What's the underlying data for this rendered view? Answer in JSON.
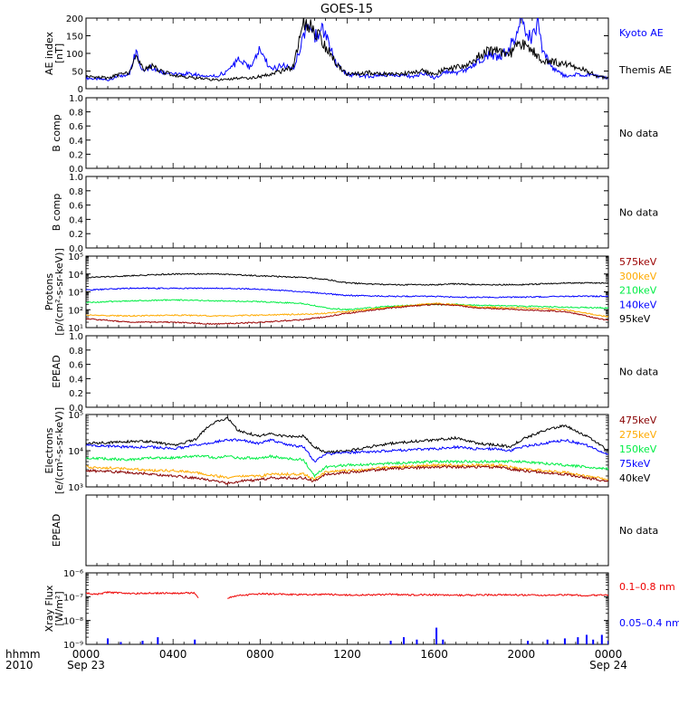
{
  "title": "GOES-15",
  "colors": {
    "black": "#000000",
    "blue": "#0000ff",
    "red": "#e00000",
    "orange": "#ffaa00",
    "green": "#00ee44",
    "darkred": "#880000",
    "p575": "#9b0000",
    "xray_long": "#ee0000",
    "xray_short": "#0000ff"
  },
  "time_axis": {
    "label_line1": "hhmm",
    "label_line2": "2010",
    "ticks": [
      {
        "hour": 0,
        "label": "0000",
        "sublabel": "Sep 23"
      },
      {
        "hour": 4,
        "label": "0400",
        "sublabel": ""
      },
      {
        "hour": 8,
        "label": "0800",
        "sublabel": ""
      },
      {
        "hour": 12,
        "label": "1200",
        "sublabel": ""
      },
      {
        "hour": 16,
        "label": "1600",
        "sublabel": ""
      },
      {
        "hour": 20,
        "label": "2000",
        "sublabel": ""
      },
      {
        "hour": 24,
        "label": "0000",
        "sublabel": "Sep 24"
      }
    ],
    "range_hours": [
      0,
      24
    ]
  },
  "panels": [
    {
      "id": "ae",
      "ylabel": [
        "AE index",
        "[nT]"
      ],
      "scale": "linear",
      "ylim": [
        0,
        200
      ],
      "yticks": [
        0,
        50,
        100,
        150,
        200
      ],
      "ytick_labels": [
        "0",
        "50",
        "100",
        "150",
        "200"
      ],
      "legend": [
        {
          "text": "Kyoto AE",
          "color": "blue"
        },
        {
          "text": "Themis AE",
          "color": "black"
        }
      ],
      "no_data": ""
    },
    {
      "id": "bcomp1",
      "ylabel": [
        "B comp"
      ],
      "scale": "linear",
      "ylim": [
        0,
        1
      ],
      "yticks": [
        0,
        0.2,
        0.4,
        0.6,
        0.8,
        1.0
      ],
      "ytick_labels": [
        "0.0",
        "0.2",
        "0.4",
        "0.6",
        "0.8",
        "1.0"
      ],
      "legend": [],
      "no_data": "No data"
    },
    {
      "id": "bcomp2",
      "ylabel": [
        "B comp"
      ],
      "scale": "linear",
      "ylim": [
        0,
        1
      ],
      "yticks": [
        0,
        0.2,
        0.4,
        0.6,
        0.8,
        1.0
      ],
      "ytick_labels": [
        "0.0",
        "0.2",
        "0.4",
        "0.6",
        "0.8",
        "1.0"
      ],
      "legend": [],
      "no_data": "No data"
    },
    {
      "id": "protons",
      "ylabel": [
        "Protons",
        "[p/(cm²-s-sr-keV)]"
      ],
      "scale": "log",
      "ylim": [
        1,
        5
      ],
      "yticks": [
        1,
        2,
        3,
        4,
        5
      ],
      "ytick_labels": [
        "10¹",
        "10²",
        "10³",
        "10⁴",
        "10⁵"
      ],
      "legend": [
        {
          "text": "575keV",
          "color": "p575"
        },
        {
          "text": "300keV",
          "color": "orange"
        },
        {
          "text": "210keV",
          "color": "green"
        },
        {
          "text": "140keV",
          "color": "blue"
        },
        {
          "text": "95keV",
          "color": "black"
        }
      ],
      "no_data": ""
    },
    {
      "id": "epead1",
      "ylabel": [
        "EPEAD"
      ],
      "scale": "linear",
      "ylim": [
        0,
        1
      ],
      "yticks": [
        0,
        0.2,
        0.4,
        0.6,
        0.8,
        1.0
      ],
      "ytick_labels": [
        "0.0",
        "0.2",
        "0.4",
        "0.6",
        "0.8",
        "1.0"
      ],
      "legend": [],
      "no_data": "No data"
    },
    {
      "id": "electrons",
      "ylabel": [
        "Electrons",
        "[e/(cm²-s-sr-keV)]"
      ],
      "scale": "log",
      "ylim": [
        3,
        5
      ],
      "yticks": [
        3,
        4,
        5
      ],
      "ytick_labels": [
        "10³",
        "10⁴",
        "10⁵"
      ],
      "legend": [
        {
          "text": "475keV",
          "color": "darkred"
        },
        {
          "text": "275keV",
          "color": "orange"
        },
        {
          "text": "150keV",
          "color": "green"
        },
        {
          "text": "75keV",
          "color": "blue"
        },
        {
          "text": "40keV",
          "color": "black"
        }
      ],
      "no_data": ""
    },
    {
      "id": "epead2",
      "ylabel": [
        "EPEAD"
      ],
      "scale": "linear",
      "ylim": [
        0,
        1
      ],
      "yticks": [],
      "ytick_labels": [],
      "legend": [],
      "no_data": "No data"
    },
    {
      "id": "xray",
      "ylabel": [
        "Xray Flux",
        "[W/m²]"
      ],
      "scale": "log",
      "ylim": [
        -9,
        -6
      ],
      "yticks": [
        -9,
        -8,
        -7,
        -6
      ],
      "ytick_labels": [
        "10⁻⁹",
        "10⁻⁸",
        "10⁻⁷",
        "10⁻⁶"
      ],
      "legend": [
        {
          "text": "0.1–0.8 nm",
          "color": "xray_long"
        },
        {
          "text": "0.05–0.4 nm",
          "color": "xray_short"
        }
      ],
      "no_data": ""
    }
  ],
  "chart_data": {
    "type": "line",
    "title": "GOES-15",
    "x_unit": "hours since 2010-09-23 00:00",
    "series": [
      {
        "panel": "ae",
        "name": "Kyoto AE",
        "color": "blue",
        "x": [
          0,
          1,
          1.5,
          2,
          2.3,
          2.6,
          3,
          3.4,
          4,
          5,
          6,
          6.5,
          7,
          7.5,
          8,
          8.5,
          9,
          9.5,
          10,
          10.2,
          10.4,
          10.6,
          10.8,
          11,
          11.5,
          12,
          13,
          14,
          15,
          15.5,
          16,
          16.5,
          17,
          17.5,
          18,
          18.5,
          19,
          19.5,
          20,
          20.2,
          20.5,
          20.8,
          21,
          21.5,
          22,
          22.5,
          23,
          23.5,
          24
        ],
        "y": [
          30,
          25,
          35,
          40,
          105,
          50,
          60,
          45,
          45,
          40,
          35,
          50,
          80,
          60,
          110,
          55,
          65,
          55,
          150,
          185,
          160,
          145,
          175,
          150,
          70,
          40,
          35,
          40,
          35,
          45,
          30,
          50,
          45,
          55,
          75,
          95,
          90,
          120,
          200,
          160,
          145,
          195,
          100,
          55,
          35,
          40,
          40,
          35,
          30
        ]
      },
      {
        "panel": "ae",
        "name": "Themis AE",
        "color": "black",
        "x": [
          0,
          1,
          1.5,
          2,
          2.3,
          2.6,
          3,
          3.4,
          4,
          5,
          6,
          6.5,
          7,
          7.5,
          8,
          8.5,
          9,
          9.5,
          10,
          10.2,
          10.4,
          10.6,
          10.8,
          11,
          11.5,
          12,
          13,
          14,
          15,
          15.5,
          16,
          16.5,
          17,
          17.5,
          18,
          18.5,
          19,
          19.5,
          20,
          20.2,
          20.5,
          20.8,
          21,
          21.5,
          22,
          22.5,
          23,
          23.5,
          24
        ],
        "y": [
          35,
          30,
          40,
          45,
          100,
          55,
          65,
          50,
          40,
          30,
          25,
          25,
          30,
          30,
          35,
          40,
          50,
          60,
          190,
          185,
          165,
          160,
          140,
          120,
          70,
          40,
          45,
          40,
          45,
          50,
          40,
          55,
          60,
          65,
          90,
          110,
          105,
          100,
          130,
          120,
          110,
          90,
          80,
          75,
          70,
          60,
          50,
          35,
          30
        ]
      },
      {
        "panel": "protons",
        "name": "95keV",
        "color": "black",
        "x": [
          0,
          2,
          4,
          6,
          8,
          10,
          11,
          12,
          14,
          16,
          17,
          18,
          20,
          22,
          24
        ],
        "y": [
          3.8,
          3.9,
          4.0,
          4.0,
          3.9,
          3.8,
          3.7,
          3.5,
          3.4,
          3.4,
          3.45,
          3.4,
          3.4,
          3.5,
          3.5
        ]
      },
      {
        "panel": "protons",
        "name": "140keV",
        "color": "blue",
        "x": [
          0,
          2,
          4,
          6,
          8,
          10,
          11,
          12,
          14,
          16,
          17,
          18,
          20,
          22,
          24
        ],
        "y": [
          3.1,
          3.2,
          3.2,
          3.2,
          3.15,
          3.0,
          2.9,
          2.8,
          2.75,
          2.75,
          2.7,
          2.7,
          2.7,
          2.75,
          2.75
        ]
      },
      {
        "panel": "protons",
        "name": "210keV",
        "color": "green",
        "x": [
          0,
          2,
          4,
          6,
          8,
          10,
          11,
          12,
          14,
          16,
          17,
          18,
          20,
          22,
          24
        ],
        "y": [
          2.4,
          2.5,
          2.55,
          2.5,
          2.45,
          2.35,
          2.1,
          2.0,
          2.2,
          2.3,
          2.3,
          2.25,
          2.2,
          2.15,
          2.1
        ]
      },
      {
        "panel": "protons",
        "name": "300keV",
        "color": "orange",
        "x": [
          0,
          2,
          4,
          6,
          8,
          10,
          11,
          12,
          14,
          16,
          17,
          18,
          20,
          22,
          24
        ],
        "y": [
          1.7,
          1.65,
          1.7,
          1.65,
          1.7,
          1.75,
          1.8,
          1.9,
          2.15,
          2.35,
          2.3,
          2.15,
          2.1,
          2.0,
          1.6
        ]
      },
      {
        "panel": "protons",
        "name": "575keV",
        "color": "p575",
        "x": [
          0,
          2,
          4,
          6,
          8,
          10,
          11,
          12,
          14,
          16,
          17,
          18,
          20,
          22,
          24
        ],
        "y": [
          1.5,
          1.3,
          1.3,
          1.2,
          1.3,
          1.45,
          1.6,
          1.8,
          2.1,
          2.3,
          2.25,
          2.1,
          2.0,
          1.9,
          1.4
        ]
      },
      {
        "panel": "electrons",
        "name": "40keV",
        "color": "black",
        "x": [
          0,
          2,
          3,
          4,
          5,
          5.5,
          6,
          6.5,
          7,
          8,
          8.5,
          9,
          10,
          10.5,
          11,
          12,
          14,
          16,
          17,
          18,
          19,
          19.5,
          20,
          21,
          22,
          23,
          24
        ],
        "y": [
          4.2,
          4.25,
          4.25,
          4.15,
          4.3,
          4.6,
          4.8,
          4.9,
          4.55,
          4.4,
          4.5,
          4.4,
          4.4,
          4.1,
          3.95,
          4.0,
          4.2,
          4.3,
          4.35,
          4.2,
          4.15,
          4.1,
          4.3,
          4.55,
          4.7,
          4.4,
          4.0
        ]
      },
      {
        "panel": "electrons",
        "name": "75keV",
        "color": "blue",
        "x": [
          0,
          2,
          3,
          4,
          5,
          5.5,
          6,
          6.5,
          7,
          8,
          8.5,
          9,
          10,
          10.5,
          11,
          12,
          14,
          16,
          17,
          18,
          19,
          19.5,
          20,
          21,
          22,
          23,
          24
        ],
        "y": [
          4.15,
          4.1,
          4.1,
          4.05,
          4.15,
          4.2,
          4.25,
          4.3,
          4.3,
          4.2,
          4.3,
          4.2,
          4.1,
          3.7,
          3.9,
          3.95,
          4.0,
          4.05,
          4.1,
          4.05,
          4.05,
          4.0,
          4.1,
          4.2,
          4.3,
          4.15,
          3.9
        ]
      },
      {
        "panel": "electrons",
        "name": "150keV",
        "color": "green",
        "x": [
          0,
          2,
          3,
          4,
          5,
          5.5,
          6,
          6.5,
          7,
          8,
          8.5,
          9,
          10,
          10.5,
          11,
          12,
          14,
          16,
          17,
          18,
          19,
          19.5,
          20,
          21,
          22,
          23,
          24
        ],
        "y": [
          3.8,
          3.75,
          3.8,
          3.8,
          3.85,
          3.85,
          3.8,
          3.85,
          3.8,
          3.8,
          3.85,
          3.8,
          3.75,
          3.3,
          3.55,
          3.6,
          3.65,
          3.7,
          3.7,
          3.7,
          3.7,
          3.7,
          3.7,
          3.65,
          3.6,
          3.55,
          3.5
        ]
      },
      {
        "panel": "electrons",
        "name": "275keV",
        "color": "orange",
        "x": [
          0,
          2,
          3,
          4,
          5,
          5.5,
          6,
          6.5,
          7,
          8,
          8.5,
          9,
          10,
          10.5,
          11,
          12,
          14,
          16,
          17,
          18,
          19,
          19.5,
          20,
          21,
          22,
          23,
          24
        ],
        "y": [
          3.55,
          3.5,
          3.45,
          3.45,
          3.4,
          3.35,
          3.3,
          3.25,
          3.3,
          3.3,
          3.35,
          3.35,
          3.35,
          3.2,
          3.4,
          3.45,
          3.55,
          3.6,
          3.6,
          3.6,
          3.6,
          3.55,
          3.5,
          3.45,
          3.4,
          3.3,
          3.2
        ]
      },
      {
        "panel": "electrons",
        "name": "475keV",
        "color": "darkred",
        "x": [
          0,
          2,
          3,
          4,
          5,
          5.5,
          6,
          6.5,
          7,
          8,
          8.5,
          9,
          10,
          10.5,
          11,
          12,
          14,
          16,
          17,
          18,
          19,
          19.5,
          20,
          21,
          22,
          23,
          24
        ],
        "y": [
          3.45,
          3.4,
          3.35,
          3.3,
          3.25,
          3.2,
          3.15,
          3.1,
          3.15,
          3.2,
          3.25,
          3.25,
          3.25,
          3.15,
          3.35,
          3.4,
          3.5,
          3.55,
          3.55,
          3.55,
          3.55,
          3.5,
          3.45,
          3.4,
          3.35,
          3.25,
          3.15
        ]
      },
      {
        "panel": "xray",
        "name": "0.1–0.8 nm",
        "color": "xray_long",
        "x": [
          0,
          0.5,
          1,
          2,
          3,
          4,
          4.5,
          5,
          5.2,
          null,
          6.5,
          7,
          8,
          9,
          10,
          11,
          12,
          13,
          14,
          15,
          16,
          17,
          18,
          19,
          20,
          21,
          22,
          23,
          24
        ],
        "y": [
          -6.85,
          -6.9,
          -6.82,
          -6.87,
          -6.85,
          -6.86,
          -6.84,
          -6.85,
          -7.1,
          null,
          -7.05,
          -6.95,
          -6.88,
          -6.9,
          -6.92,
          -6.9,
          -6.93,
          -6.92,
          -6.9,
          -6.93,
          -6.92,
          -6.94,
          -6.93,
          -6.92,
          -6.93,
          -6.94,
          -6.92,
          -6.95,
          -6.92
        ]
      },
      {
        "panel": "xray",
        "name": "0.05–0.4 nm",
        "color": "xray_short",
        "spikes": [
          [
            1.0,
            -8.75
          ],
          [
            1.6,
            -8.9
          ],
          [
            2.6,
            -8.85
          ],
          [
            3.3,
            -8.7
          ],
          [
            5.0,
            -8.8
          ],
          [
            14.0,
            -8.85
          ],
          [
            14.6,
            -8.7
          ],
          [
            15.2,
            -8.8
          ],
          [
            16.1,
            -8.3
          ],
          [
            16.4,
            -8.8
          ],
          [
            20.3,
            -8.85
          ],
          [
            21.2,
            -8.8
          ],
          [
            22.0,
            -8.75
          ],
          [
            22.6,
            -8.7
          ],
          [
            23.0,
            -8.6
          ],
          [
            23.3,
            -8.8
          ],
          [
            23.7,
            -8.6
          ],
          [
            24.0,
            -8.85
          ]
        ]
      }
    ]
  }
}
